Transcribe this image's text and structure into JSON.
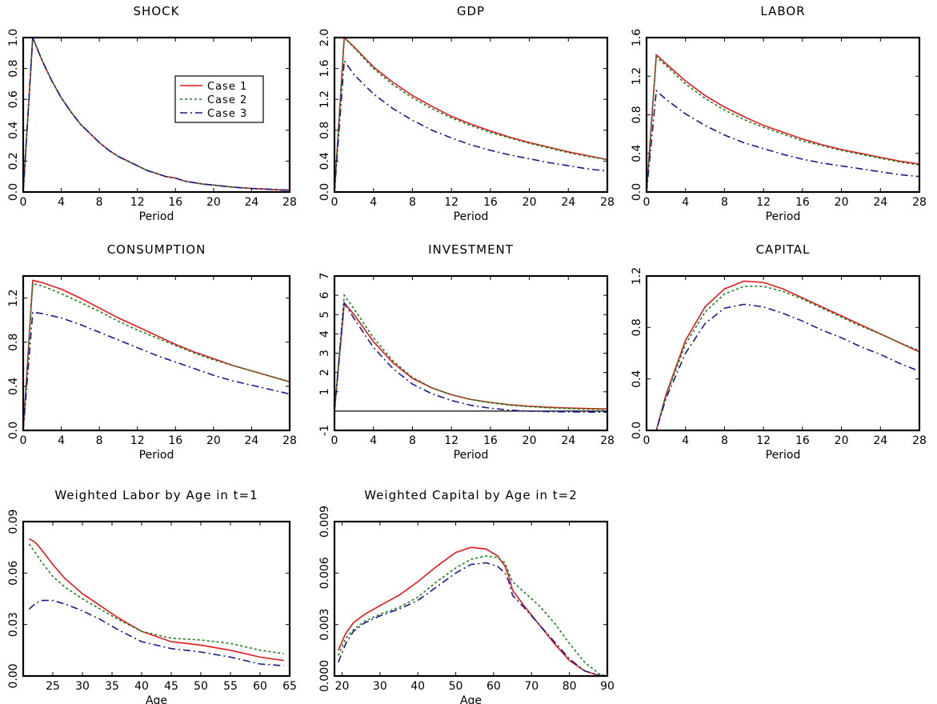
{
  "figure": {
    "legend": {
      "placement": "top-right of first panel",
      "entries": [
        {
          "name": "Case 1",
          "color": "#e41a1c",
          "dash": "solid"
        },
        {
          "name": "Case 2",
          "color": "#1a7f1a",
          "dash": "dotted"
        },
        {
          "name": "Case 3",
          "color": "#1a1a8c",
          "dash": "dash-dot"
        }
      ]
    }
  },
  "chart_data": [
    {
      "id": "shock",
      "type": "line",
      "title": "SHOCK",
      "xlabel": "Period",
      "ylabel": "",
      "xlim": [
        0,
        28
      ],
      "ylim": [
        0,
        1.0
      ],
      "xticks": [
        "0",
        "4",
        "8",
        "12",
        "16",
        "20",
        "24",
        "28"
      ],
      "yticks": [
        "0.0",
        "0.2",
        "0.4",
        "0.6",
        "0.8",
        "1.0"
      ],
      "x": [
        0,
        1,
        2,
        3,
        4,
        5,
        6,
        7,
        8,
        9,
        10,
        11,
        12,
        13,
        14,
        15,
        16,
        17,
        18,
        19,
        20,
        21,
        22,
        23,
        24,
        25,
        26,
        27,
        28
      ],
      "series": [
        {
          "name": "Case 1",
          "values": [
            0,
            1.0,
            0.85,
            0.72,
            0.61,
            0.52,
            0.44,
            0.38,
            0.32,
            0.27,
            0.23,
            0.2,
            0.17,
            0.14,
            0.12,
            0.1,
            0.09,
            0.07,
            0.06,
            0.05,
            0.045,
            0.038,
            0.032,
            0.027,
            0.023,
            0.02,
            0.017,
            0.014,
            0.012
          ]
        },
        {
          "name": "Case 2",
          "values": [
            0,
            1.0,
            0.85,
            0.72,
            0.61,
            0.52,
            0.44,
            0.38,
            0.32,
            0.27,
            0.23,
            0.2,
            0.17,
            0.14,
            0.12,
            0.1,
            0.09,
            0.07,
            0.06,
            0.05,
            0.045,
            0.038,
            0.032,
            0.027,
            0.023,
            0.02,
            0.017,
            0.014,
            0.012
          ]
        },
        {
          "name": "Case 3",
          "values": [
            0,
            1.0,
            0.85,
            0.72,
            0.61,
            0.52,
            0.44,
            0.38,
            0.32,
            0.27,
            0.23,
            0.2,
            0.17,
            0.14,
            0.12,
            0.1,
            0.09,
            0.07,
            0.06,
            0.05,
            0.045,
            0.038,
            0.032,
            0.027,
            0.023,
            0.02,
            0.017,
            0.014,
            0.012
          ]
        }
      ]
    },
    {
      "id": "gdp",
      "type": "line",
      "title": "GDP",
      "xlabel": "Period",
      "ylabel": "",
      "xlim": [
        0,
        28
      ],
      "ylim": [
        0,
        2.0
      ],
      "xticks": [
        "0",
        "4",
        "8",
        "12",
        "16",
        "20",
        "24",
        "28"
      ],
      "yticks": [
        "0.0",
        "0.4",
        "0.8",
        "1.2",
        "1.6",
        "2.0"
      ],
      "x": [
        0,
        1,
        2,
        4,
        6,
        8,
        10,
        12,
        14,
        16,
        18,
        20,
        22,
        24,
        26,
        28
      ],
      "series": [
        {
          "name": "Case 1",
          "values": [
            0,
            2.0,
            1.88,
            1.62,
            1.42,
            1.25,
            1.11,
            0.98,
            0.88,
            0.79,
            0.71,
            0.64,
            0.58,
            0.52,
            0.47,
            0.42
          ]
        },
        {
          "name": "Case 2",
          "values": [
            0,
            2.0,
            1.87,
            1.6,
            1.39,
            1.22,
            1.08,
            0.96,
            0.86,
            0.77,
            0.7,
            0.63,
            0.57,
            0.51,
            0.46,
            0.42
          ]
        },
        {
          "name": "Case 3",
          "values": [
            0,
            1.7,
            1.52,
            1.27,
            1.08,
            0.93,
            0.8,
            0.7,
            0.61,
            0.54,
            0.48,
            0.43,
            0.38,
            0.34,
            0.3,
            0.27
          ]
        }
      ]
    },
    {
      "id": "labor",
      "type": "line",
      "title": "LABOR",
      "xlabel": "Period",
      "ylabel": "",
      "xlim": [
        0,
        28
      ],
      "ylim": [
        0,
        1.6
      ],
      "xticks": [
        "0",
        "4",
        "8",
        "12",
        "16",
        "20",
        "24",
        "28"
      ],
      "yticks": [
        "0.0",
        "0.4",
        "0.8",
        "1.2",
        "1.6"
      ],
      "x": [
        0,
        1,
        2,
        4,
        6,
        8,
        10,
        12,
        14,
        16,
        18,
        20,
        22,
        24,
        26,
        28
      ],
      "series": [
        {
          "name": "Case 1",
          "values": [
            0,
            1.42,
            1.33,
            1.15,
            1.0,
            0.88,
            0.78,
            0.69,
            0.62,
            0.55,
            0.49,
            0.44,
            0.4,
            0.36,
            0.32,
            0.29
          ]
        },
        {
          "name": "Case 2",
          "values": [
            0,
            1.4,
            1.31,
            1.12,
            0.97,
            0.85,
            0.75,
            0.67,
            0.6,
            0.53,
            0.48,
            0.43,
            0.39,
            0.35,
            0.31,
            0.28
          ]
        },
        {
          "name": "Case 3",
          "values": [
            0,
            1.05,
            0.96,
            0.81,
            0.69,
            0.59,
            0.51,
            0.45,
            0.39,
            0.34,
            0.3,
            0.27,
            0.24,
            0.21,
            0.18,
            0.16
          ]
        }
      ]
    },
    {
      "id": "consumption",
      "type": "line",
      "title": "CONSUMPTION",
      "xlabel": "Period",
      "ylabel": "",
      "xlim": [
        0,
        28
      ],
      "ylim": [
        0,
        1.4
      ],
      "xticks": [
        "0",
        "4",
        "8",
        "12",
        "16",
        "20",
        "24",
        "28"
      ],
      "yticks": [
        "0.0",
        "0.4",
        "0.8",
        "1.2"
      ],
      "x": [
        0,
        1,
        2,
        4,
        6,
        8,
        10,
        12,
        14,
        16,
        18,
        20,
        22,
        24,
        26,
        28
      ],
      "series": [
        {
          "name": "Case 1",
          "values": [
            0,
            1.36,
            1.34,
            1.28,
            1.2,
            1.11,
            1.02,
            0.94,
            0.86,
            0.78,
            0.71,
            0.65,
            0.59,
            0.54,
            0.49,
            0.44
          ]
        },
        {
          "name": "Case 2",
          "values": [
            0,
            1.33,
            1.31,
            1.24,
            1.16,
            1.08,
            0.99,
            0.91,
            0.84,
            0.77,
            0.7,
            0.64,
            0.59,
            0.54,
            0.49,
            0.44
          ]
        },
        {
          "name": "Case 3",
          "values": [
            0,
            1.07,
            1.06,
            1.02,
            0.96,
            0.89,
            0.82,
            0.75,
            0.68,
            0.62,
            0.56,
            0.5,
            0.45,
            0.41,
            0.37,
            0.33
          ]
        }
      ]
    },
    {
      "id": "investment",
      "type": "line",
      "title": "INVESTMENT",
      "xlabel": "Period",
      "ylabel": "",
      "xlim": [
        0,
        28
      ],
      "ylim": [
        -1,
        7
      ],
      "xticks": [
        "0",
        "4",
        "8",
        "12",
        "16",
        "20",
        "24",
        "28"
      ],
      "yticks": [
        "-1",
        "1",
        "2",
        "3",
        "4",
        "5",
        "6",
        "7"
      ],
      "zero_line": 0,
      "x": [
        0,
        1,
        2,
        4,
        6,
        8,
        10,
        12,
        14,
        16,
        18,
        20,
        22,
        24,
        26,
        28
      ],
      "series": [
        {
          "name": "Case 1",
          "values": [
            0,
            5.6,
            5.0,
            3.6,
            2.5,
            1.7,
            1.2,
            0.85,
            0.6,
            0.45,
            0.33,
            0.25,
            0.2,
            0.16,
            0.13,
            0.11
          ]
        },
        {
          "name": "Case 2",
          "values": [
            0,
            6.0,
            5.3,
            3.8,
            2.6,
            1.75,
            1.2,
            0.85,
            0.6,
            0.43,
            0.31,
            0.23,
            0.17,
            0.13,
            0.1,
            0.08
          ]
        },
        {
          "name": "Case 3",
          "values": [
            0,
            5.6,
            4.8,
            3.3,
            2.2,
            1.4,
            0.9,
            0.55,
            0.3,
            0.15,
            0.05,
            0.0,
            -0.03,
            -0.04,
            -0.05,
            -0.05
          ]
        }
      ]
    },
    {
      "id": "capital",
      "type": "line",
      "title": "CAPITAL",
      "xlabel": "Period",
      "ylabel": "",
      "xlim": [
        0,
        28
      ],
      "ylim": [
        0,
        1.2
      ],
      "xticks": [
        "0",
        "4",
        "8",
        "12",
        "16",
        "20",
        "24",
        "28"
      ],
      "yticks": [
        "0.0",
        "0.4",
        "0.8",
        "1.2"
      ],
      "x": [
        0,
        1,
        2,
        4,
        6,
        8,
        10,
        12,
        14,
        16,
        18,
        20,
        22,
        24,
        26,
        28
      ],
      "series": [
        {
          "name": "Case 1",
          "values": [
            0,
            0,
            0.28,
            0.7,
            0.96,
            1.1,
            1.16,
            1.15,
            1.1,
            1.03,
            0.96,
            0.89,
            0.82,
            0.75,
            0.68,
            0.61
          ]
        },
        {
          "name": "Case 2",
          "values": [
            0,
            0,
            0.27,
            0.67,
            0.92,
            1.06,
            1.12,
            1.12,
            1.08,
            1.02,
            0.95,
            0.88,
            0.81,
            0.75,
            0.68,
            0.62
          ]
        },
        {
          "name": "Case 3",
          "values": [
            0,
            0,
            0.25,
            0.6,
            0.83,
            0.95,
            0.98,
            0.96,
            0.91,
            0.85,
            0.78,
            0.72,
            0.65,
            0.59,
            0.52,
            0.46
          ]
        }
      ]
    },
    {
      "id": "weighted-labor",
      "type": "line",
      "title": "Weighted Labor by Age in t=1",
      "xlabel": "Age",
      "ylabel": "",
      "xlim": [
        20,
        65
      ],
      "ylim": [
        0,
        0.09
      ],
      "xticks": [
        "25",
        "30",
        "35",
        "40",
        "45",
        "50",
        "55",
        "60",
        "65"
      ],
      "yticks": [
        "0.00",
        "0.03",
        "0.06",
        "0.09"
      ],
      "x": [
        21,
        22,
        23,
        25,
        27,
        30,
        33,
        36,
        40,
        45,
        50,
        55,
        60,
        64
      ],
      "series": [
        {
          "name": "Case 1",
          "values": [
            0.08,
            0.078,
            0.074,
            0.065,
            0.057,
            0.048,
            0.041,
            0.034,
            0.026,
            0.02,
            0.018,
            0.015,
            0.011,
            0.009
          ]
        },
        {
          "name": "Case 2",
          "values": [
            0.077,
            0.072,
            0.067,
            0.058,
            0.052,
            0.045,
            0.039,
            0.033,
            0.026,
            0.022,
            0.021,
            0.019,
            0.015,
            0.013
          ]
        },
        {
          "name": "Case 3",
          "values": [
            0.039,
            0.042,
            0.044,
            0.044,
            0.042,
            0.038,
            0.033,
            0.027,
            0.02,
            0.016,
            0.014,
            0.011,
            0.007,
            0.006
          ]
        }
      ]
    },
    {
      "id": "weighted-capital",
      "type": "line",
      "title": "Weighted Capital by Age in t=2",
      "xlabel": "Age",
      "ylabel": "",
      "xlim": [
        18,
        90
      ],
      "ylim": [
        0,
        0.009
      ],
      "xticks": [
        "20",
        "30",
        "40",
        "50",
        "60",
        "70",
        "80",
        "90"
      ],
      "yticks": [
        "0.000",
        "0.003",
        "0.006",
        "0.009"
      ],
      "x": [
        19,
        21,
        23,
        26,
        30,
        35,
        40,
        45,
        50,
        54,
        58,
        61,
        63,
        64,
        65,
        68,
        72,
        76,
        80,
        84,
        88,
        90
      ],
      "series": [
        {
          "name": "Case 1",
          "values": [
            0.0015,
            0.0025,
            0.0031,
            0.0036,
            0.0041,
            0.0047,
            0.0055,
            0.0064,
            0.0072,
            0.0075,
            0.0074,
            0.007,
            0.0064,
            0.0058,
            0.005,
            0.0041,
            0.003,
            0.0019,
            0.0009,
            0.0003,
            2e-05,
            0.0
          ]
        },
        {
          "name": "Case 2",
          "values": [
            0.0012,
            0.0022,
            0.0027,
            0.0032,
            0.0036,
            0.004,
            0.0046,
            0.0055,
            0.0063,
            0.0068,
            0.007,
            0.0069,
            0.0066,
            0.006,
            0.0055,
            0.0049,
            0.0041,
            0.0031,
            0.0019,
            0.0008,
            0.0001,
            0.0
          ]
        },
        {
          "name": "Case 3",
          "values": [
            0.0008,
            0.0019,
            0.0026,
            0.0031,
            0.0035,
            0.0039,
            0.0044,
            0.0052,
            0.006,
            0.0065,
            0.0066,
            0.0064,
            0.006,
            0.0055,
            0.0047,
            0.004,
            0.003,
            0.002,
            0.001,
            0.0003,
            3e-05,
            0.0
          ]
        }
      ]
    }
  ]
}
